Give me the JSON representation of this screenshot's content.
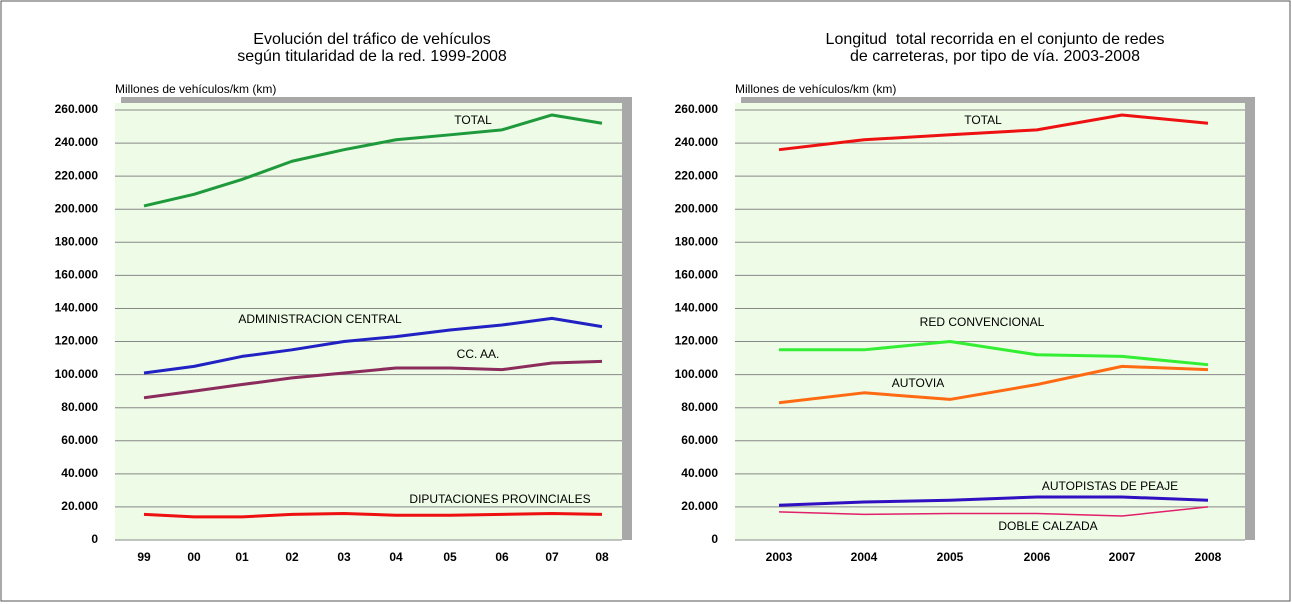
{
  "chart_data": [
    {
      "type": "line",
      "title": [
        "Evolución del tráfico de vehículos",
        "según titularidad de la red. 1999-2008"
      ],
      "y_label": "Millones de vehículos/km (km)",
      "categories": [
        "99",
        "00",
        "01",
        "02",
        "03",
        "04",
        "05",
        "06",
        "07",
        "08"
      ],
      "ylim": [
        0,
        260000
      ],
      "yticks": [
        0,
        {
          "value": 20000,
          "label": "20.000"
        },
        {
          "value": 40000,
          "label": "40.000"
        },
        {
          "value": 60000,
          "label": "60.000"
        },
        {
          "value": 80000,
          "label": "80.000"
        },
        {
          "value": 100000,
          "label": "100.000"
        },
        {
          "value": 120000,
          "label": "120.000"
        },
        {
          "value": 140000,
          "label": "140.000"
        },
        {
          "value": 160000,
          "label": "160.000"
        },
        {
          "value": 180000,
          "label": "180.000"
        },
        {
          "value": 200000,
          "label": "200.000"
        },
        {
          "value": 220000,
          "label": "220.000"
        },
        {
          "value": 240000,
          "label": "240.000"
        },
        {
          "value": 260000,
          "label": "260.000"
        }
      ],
      "grid": true,
      "series": [
        {
          "name": "TOTAL",
          "color": "#1e9a3c",
          "values": [
            202000,
            209000,
            218000,
            229000,
            236000,
            242000,
            245000,
            248000,
            257000,
            252000
          ]
        },
        {
          "name": "ADMINISTRACION CENTRAL",
          "color": "#2222c4",
          "values": [
            101000,
            105000,
            111000,
            115000,
            120000,
            123000,
            127000,
            130000,
            134000,
            129000
          ]
        },
        {
          "name": "CC. AA.",
          "color": "#8b2c5c",
          "values": [
            86000,
            90000,
            94000,
            98000,
            101000,
            104000,
            104000,
            103000,
            107000,
            108000
          ]
        },
        {
          "name": "DIPUTACIONES PROVINCIALES",
          "color": "#ee1111",
          "values": [
            15500,
            14000,
            14000,
            15500,
            16000,
            15000,
            15000,
            15500,
            16000,
            15500
          ]
        }
      ]
    },
    {
      "type": "line",
      "title": [
        "Longitud  total recorrida en el conjunto de redes",
        "de carreteras, por tipo de vía. 2003-2008"
      ],
      "y_label": "Millones de vehículos/km (km)",
      "categories": [
        "2003",
        "2004",
        "2005",
        "2006",
        "2007",
        "2008"
      ],
      "ylim": [
        0,
        260000
      ],
      "yticks": [
        0,
        {
          "value": 20000,
          "label": "20.000"
        },
        {
          "value": 40000,
          "label": "40.000"
        },
        {
          "value": 60000,
          "label": "60.000"
        },
        {
          "value": 80000,
          "label": "80.000"
        },
        {
          "value": 100000,
          "label": "100.000"
        },
        {
          "value": 120000,
          "label": "120.000"
        },
        {
          "value": 140000,
          "label": "140.000"
        },
        {
          "value": 160000,
          "label": "160.000"
        },
        {
          "value": 180000,
          "label": "180.000"
        },
        {
          "value": 200000,
          "label": "200.000"
        },
        {
          "value": 220000,
          "label": "220.000"
        },
        {
          "value": 240000,
          "label": "240.000"
        },
        {
          "value": 260000,
          "label": "260.000"
        }
      ],
      "grid": true,
      "series": [
        {
          "name": "TOTAL",
          "color": "#ee1111",
          "values": [
            236000,
            242000,
            245000,
            248000,
            257000,
            252000
          ]
        },
        {
          "name": "RED CONVENCIONAL",
          "color": "#33ee33",
          "values": [
            115000,
            115000,
            120000,
            112000,
            111000,
            106000
          ]
        },
        {
          "name": "AUTOVIA",
          "color": "#ff6a13",
          "values": [
            83000,
            89000,
            85000,
            94000,
            105000,
            103000
          ]
        },
        {
          "name": "AUTOPISTAS DE PEAJE",
          "color": "#3010c0",
          "values": [
            21000,
            23000,
            24000,
            26000,
            26000,
            24000
          ]
        },
        {
          "name": "DOBLE CALZADA",
          "color": "#e0206a",
          "values": [
            17000,
            15500,
            16000,
            16000,
            14500,
            20000
          ]
        }
      ]
    }
  ]
}
